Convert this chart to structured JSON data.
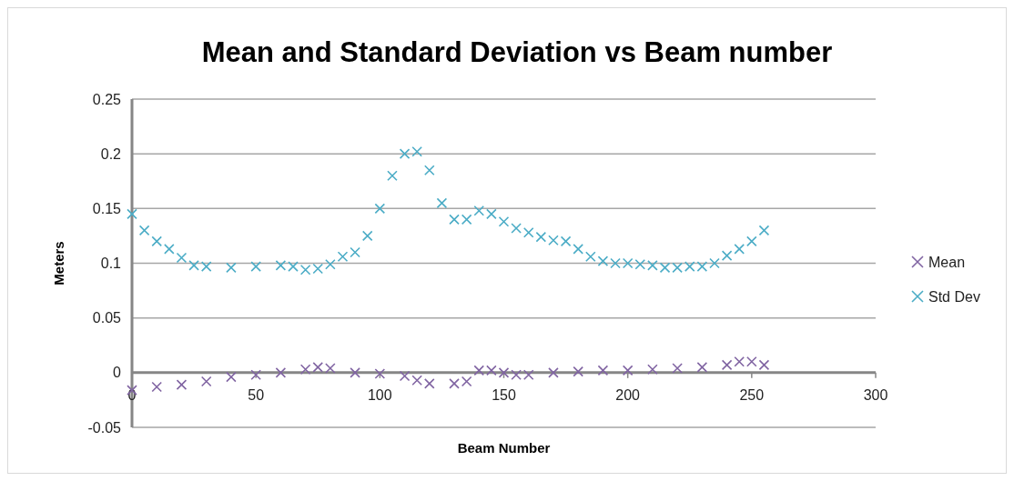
{
  "chart_data": {
    "type": "scatter",
    "title": "Mean and Standard Deviation vs Beam number",
    "xlabel": "Beam Number",
    "ylabel": "Meters",
    "xlim": [
      0,
      300
    ],
    "xticks": [
      0,
      50,
      100,
      150,
      200,
      250,
      300
    ],
    "ylim": [
      -0.05,
      0.25
    ],
    "yticks": [
      -0.05,
      0,
      0.05,
      0.1,
      0.15,
      0.2,
      0.25
    ],
    "grid": "y",
    "legend": "right",
    "series": [
      {
        "name": "Mean",
        "color": "#8064a2",
        "marker": "cross",
        "x": [
          0,
          10,
          20,
          30,
          40,
          50,
          60,
          70,
          75,
          80,
          90,
          100,
          110,
          115,
          120,
          130,
          135,
          140,
          145,
          150,
          155,
          160,
          170,
          180,
          190,
          200,
          210,
          220,
          230,
          240,
          245,
          250,
          255
        ],
        "values": [
          -0.016,
          -0.013,
          -0.011,
          -0.008,
          -0.004,
          -0.002,
          0,
          0.003,
          0.005,
          0.004,
          0,
          -0.001,
          -0.003,
          -0.007,
          -0.01,
          -0.01,
          -0.008,
          0.002,
          0.002,
          0,
          -0.002,
          -0.002,
          0,
          0.001,
          0.002,
          0.002,
          0.003,
          0.004,
          0.005,
          0.007,
          0.01,
          0.01,
          0.007
        ]
      },
      {
        "name": "Std Dev",
        "color": "#4bacc6",
        "marker": "cross",
        "x": [
          0,
          5,
          10,
          15,
          20,
          25,
          30,
          40,
          50,
          60,
          65,
          70,
          75,
          80,
          85,
          90,
          95,
          100,
          105,
          110,
          115,
          120,
          125,
          130,
          135,
          140,
          145,
          150,
          155,
          160,
          165,
          170,
          175,
          180,
          185,
          190,
          195,
          200,
          205,
          210,
          215,
          220,
          225,
          230,
          235,
          240,
          245,
          250,
          255
        ],
        "values": [
          0.145,
          0.13,
          0.12,
          0.113,
          0.105,
          0.098,
          0.097,
          0.096,
          0.097,
          0.098,
          0.097,
          0.094,
          0.095,
          0.099,
          0.106,
          0.11,
          0.125,
          0.15,
          0.18,
          0.2,
          0.202,
          0.185,
          0.155,
          0.14,
          0.14,
          0.148,
          0.145,
          0.138,
          0.132,
          0.128,
          0.124,
          0.121,
          0.12,
          0.113,
          0.106,
          0.102,
          0.1,
          0.1,
          0.099,
          0.098,
          0.096,
          0.096,
          0.097,
          0.097,
          0.1,
          0.107,
          0.113,
          0.12,
          0.13
        ]
      }
    ]
  }
}
